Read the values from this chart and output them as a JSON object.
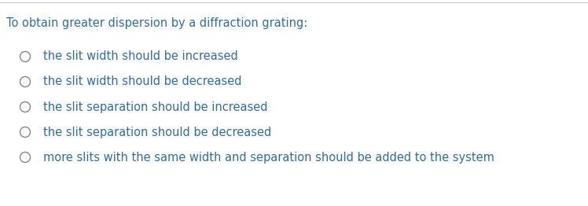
{
  "background_color": "#ffffff",
  "top_line_color": "#c8c8c8",
  "question_text": "To obtain greater dispersion by a diffraction grating:",
  "question_color": "#2e6da4",
  "question_fontsize": 10.5,
  "options": [
    "the slit width should be increased",
    "the slit width should be decreased",
    "the slit separation should be increased",
    "the slit separation should be decreased",
    "more slits with the same width and separation should be added to the system"
  ],
  "options_color": "#2e6da4",
  "options_fontsize": 10.5,
  "circle_color": "#888888",
  "circle_linewidth": 1.0
}
